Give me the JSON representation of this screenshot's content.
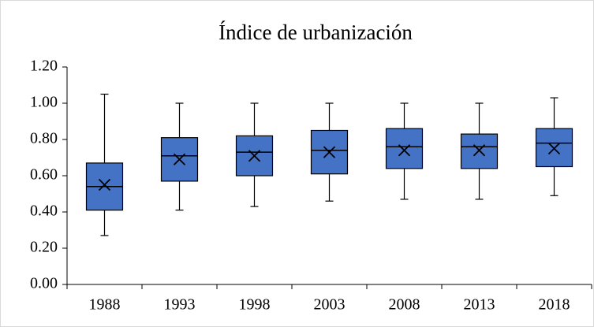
{
  "chart_data": {
    "type": "box",
    "title": "Índice de urbanización",
    "categories": [
      "1988",
      "1993",
      "1998",
      "2003",
      "2008",
      "2013",
      "2018"
    ],
    "min": [
      0.27,
      0.41,
      0.43,
      0.46,
      0.47,
      0.47,
      0.49
    ],
    "q1": [
      0.41,
      0.57,
      0.6,
      0.61,
      0.64,
      0.64,
      0.65
    ],
    "median": [
      0.54,
      0.71,
      0.73,
      0.74,
      0.76,
      0.76,
      0.78
    ],
    "q3": [
      0.67,
      0.81,
      0.82,
      0.85,
      0.86,
      0.83,
      0.86
    ],
    "max": [
      1.05,
      1.0,
      1.0,
      1.0,
      1.0,
      1.0,
      1.03
    ],
    "mean": [
      0.55,
      0.69,
      0.71,
      0.73,
      0.74,
      0.74,
      0.75
    ],
    "color": "#4472c4",
    "ylim": [
      0,
      1.2
    ],
    "yticks": [
      {
        "value": 0,
        "label": "0.00"
      },
      {
        "value": 0.2,
        "label": "0.20"
      },
      {
        "value": 0.4,
        "label": "0.40"
      },
      {
        "value": 0.6,
        "label": "0.60"
      },
      {
        "value": 0.8,
        "label": "0.80"
      },
      {
        "value": 1.0,
        "label": "1.00"
      },
      {
        "value": 1.2,
        "label": "1.20"
      }
    ]
  }
}
